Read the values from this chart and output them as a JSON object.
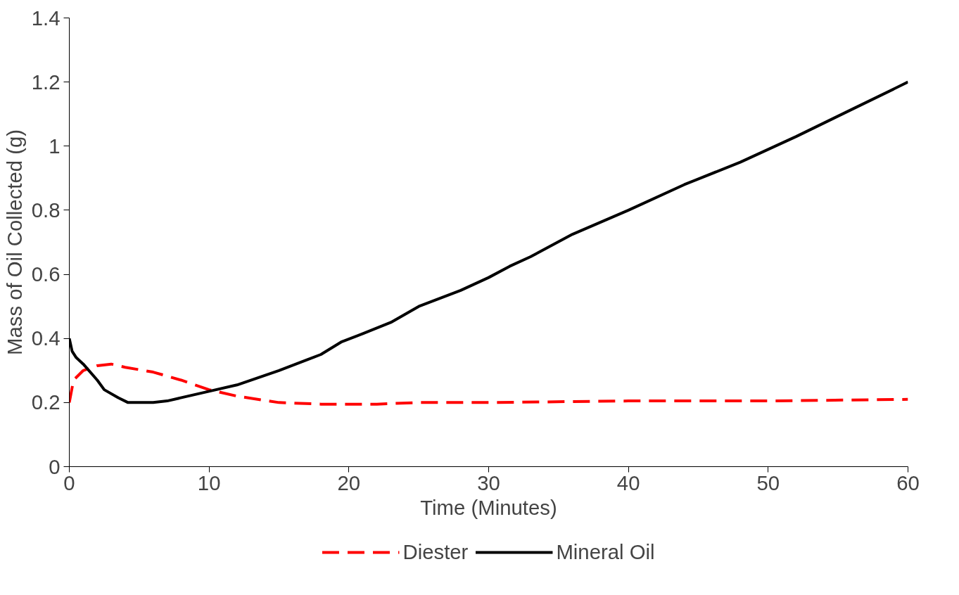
{
  "chart_data": {
    "type": "line",
    "xlabel": "Time (Minutes)",
    "ylabel": "Mass of Oil Collected (g)",
    "xlim": [
      0,
      60
    ],
    "ylim": [
      0,
      1.4
    ],
    "xticks": [
      0,
      10,
      20,
      30,
      40,
      50,
      60
    ],
    "yticks": [
      0,
      0.2,
      0.4,
      0.6,
      0.8,
      1,
      1.2,
      1.4
    ],
    "grid": false,
    "legend": "bottom",
    "series": [
      {
        "name": "Diester",
        "color": "#ff0000",
        "line_style": "dashed",
        "x": [
          0,
          0.3,
          1,
          2,
          3,
          4,
          6,
          8,
          10,
          12,
          15,
          18,
          22,
          25,
          30,
          40,
          50,
          60
        ],
        "values": [
          0.2,
          0.27,
          0.3,
          0.315,
          0.32,
          0.31,
          0.295,
          0.27,
          0.24,
          0.22,
          0.2,
          0.195,
          0.195,
          0.2,
          0.2,
          0.205,
          0.205,
          0.21
        ]
      },
      {
        "name": "Mineral Oil",
        "color": "#000000",
        "line_style": "solid",
        "x": [
          0,
          0.2,
          0.5,
          1,
          2,
          2.5,
          3.5,
          4.2,
          6,
          7,
          10,
          12,
          15,
          18,
          19.5,
          21,
          23,
          25,
          28,
          30,
          31.5,
          33,
          36,
          40,
          44,
          48,
          52,
          56,
          60
        ],
        "values": [
          0.4,
          0.36,
          0.34,
          0.32,
          0.27,
          0.24,
          0.215,
          0.2,
          0.2,
          0.205,
          0.235,
          0.255,
          0.3,
          0.35,
          0.39,
          0.415,
          0.45,
          0.5,
          0.55,
          0.59,
          0.625,
          0.655,
          0.725,
          0.8,
          0.88,
          0.95,
          1.03,
          1.115,
          1.2
        ]
      }
    ]
  }
}
